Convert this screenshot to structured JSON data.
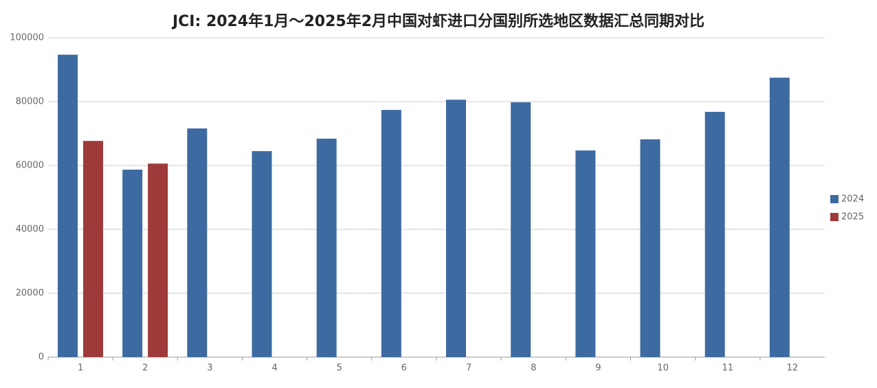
{
  "chart_data": {
    "type": "bar",
    "title": "JCI: 2024年1月～2025年2月中国对虾进口分国别所选地区数据汇总同期对比",
    "categories": [
      "1",
      "2",
      "3",
      "4",
      "5",
      "6",
      "7",
      "8",
      "9",
      "10",
      "11",
      "12"
    ],
    "series": [
      {
        "name": "2024",
        "color": "#3d6aa0",
        "values": [
          94700,
          58700,
          71600,
          64500,
          68400,
          77400,
          80600,
          79800,
          64700,
          68200,
          76800,
          87500
        ]
      },
      {
        "name": "2025",
        "color": "#9e3b3a",
        "values": [
          67700,
          60600,
          null,
          null,
          null,
          null,
          null,
          null,
          null,
          null,
          null,
          null
        ]
      }
    ],
    "ylim": [
      0,
      100000
    ],
    "yticks": [
      0,
      20000,
      40000,
      60000,
      80000,
      100000
    ],
    "grid": true,
    "legend": "right"
  }
}
